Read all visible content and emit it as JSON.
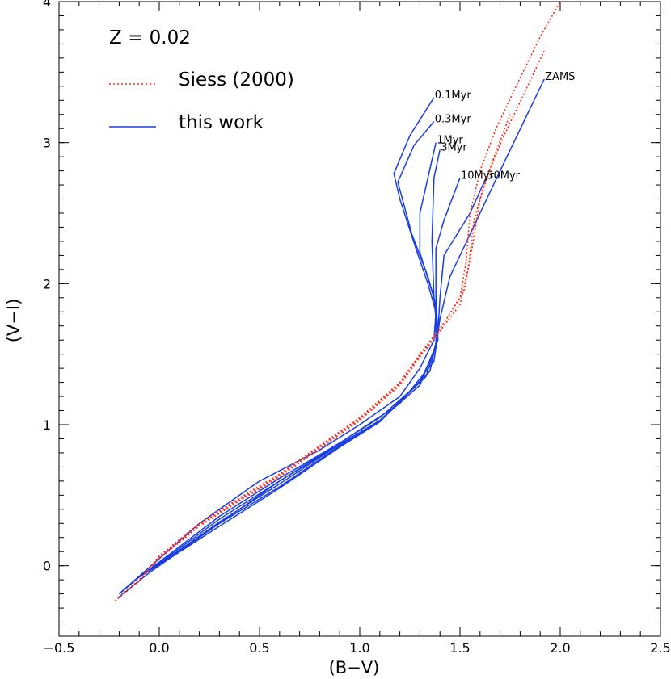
{
  "chart_data": {
    "type": "line",
    "title": "",
    "xlabel": "(B−V)",
    "ylabel": "(V−I)",
    "xlim": [
      -0.5,
      2.5
    ],
    "ylim": [
      -0.5,
      4.0
    ],
    "x_ticks": [
      -0.5,
      0.0,
      0.5,
      1.0,
      1.5,
      2.0,
      2.5
    ],
    "x_tick_labels": [
      "−0.5",
      "0.0",
      "0.5",
      "1.0",
      "1.5",
      "2.0",
      "2.5"
    ],
    "y_ticks": [
      0,
      1,
      2,
      3,
      4
    ],
    "y_tick_labels": [
      "0",
      "1",
      "2",
      "3",
      "4"
    ],
    "grid": false,
    "legend_placement": "top-left",
    "annotation": "Z = 0.02",
    "colors": {
      "siess": "#ff2a1a",
      "this_work": "#1a3ee0",
      "axes": "#000000"
    },
    "legend": [
      {
        "label": "Siess (2000)",
        "style": "dotted",
        "color": "#ff2a1a"
      },
      {
        "label": "this work",
        "style": "solid",
        "color": "#1a3ee0"
      }
    ],
    "series": [
      {
        "name": "0.1Myr",
        "group": "this work",
        "style": "solid",
        "x": [
          -0.2,
          -0.12,
          0.0,
          0.2,
          0.5,
          0.8,
          1.0,
          1.2,
          1.3,
          1.37,
          1.38,
          1.34,
          1.28,
          1.2,
          1.17,
          1.25,
          1.37
        ],
        "y": [
          -0.2,
          -0.1,
          0.05,
          0.3,
          0.6,
          0.82,
          1.0,
          1.2,
          1.4,
          1.6,
          1.8,
          2.0,
          2.25,
          2.6,
          2.78,
          3.05,
          3.32
        ]
      },
      {
        "name": "0.3Myr",
        "group": "this work",
        "style": "solid",
        "x": [
          -0.2,
          -0.1,
          0.05,
          0.3,
          0.6,
          0.9,
          1.1,
          1.3,
          1.38,
          1.38,
          1.34,
          1.26,
          1.19,
          1.27,
          1.37
        ],
        "y": [
          -0.2,
          -0.08,
          0.08,
          0.35,
          0.62,
          0.87,
          1.05,
          1.3,
          1.55,
          1.85,
          2.05,
          2.35,
          2.72,
          2.98,
          3.15
        ]
      },
      {
        "name": "1Myr",
        "group": "this work",
        "style": "solid",
        "x": [
          -0.2,
          -0.1,
          0.05,
          0.3,
          0.6,
          0.9,
          1.1,
          1.3,
          1.39,
          1.37,
          1.3,
          1.3,
          1.38
        ],
        "y": [
          -0.2,
          -0.08,
          0.07,
          0.33,
          0.6,
          0.86,
          1.03,
          1.28,
          1.6,
          1.9,
          2.22,
          2.5,
          3.0
        ]
      },
      {
        "name": "3Myr",
        "group": "this work",
        "style": "solid",
        "x": [
          -0.2,
          -0.1,
          0.05,
          0.3,
          0.6,
          0.9,
          1.1,
          1.33,
          1.39,
          1.37,
          1.36,
          1.37,
          1.4
        ],
        "y": [
          -0.2,
          -0.08,
          0.06,
          0.31,
          0.58,
          0.86,
          1.03,
          1.34,
          1.62,
          1.9,
          2.3,
          2.75,
          2.95
        ]
      },
      {
        "name": "10Myr",
        "group": "this work",
        "style": "solid",
        "x": [
          -0.2,
          -0.1,
          0.05,
          0.3,
          0.6,
          0.9,
          1.1,
          1.35,
          1.39,
          1.38,
          1.38,
          1.42,
          1.5
        ],
        "y": [
          -0.2,
          -0.08,
          0.06,
          0.3,
          0.56,
          0.85,
          1.02,
          1.38,
          1.65,
          1.9,
          2.25,
          2.45,
          2.75
        ]
      },
      {
        "name": "30Myr",
        "group": "this work",
        "style": "solid",
        "x": [
          -0.2,
          -0.1,
          0.05,
          0.3,
          0.6,
          0.9,
          1.1,
          1.35,
          1.39,
          1.4,
          1.42,
          1.55,
          1.63
        ],
        "y": [
          -0.2,
          -0.08,
          0.05,
          0.28,
          0.55,
          0.84,
          1.02,
          1.38,
          1.65,
          1.9,
          2.2,
          2.5,
          2.75
        ]
      },
      {
        "name": "ZAMS",
        "group": "this work",
        "style": "solid",
        "x": [
          -0.2,
          -0.05,
          0.25,
          0.6,
          0.9,
          1.2,
          1.37,
          1.4,
          1.45,
          1.55,
          1.7,
          1.92
        ],
        "y": [
          -0.22,
          -0.05,
          0.25,
          0.6,
          0.87,
          1.15,
          1.45,
          1.75,
          2.05,
          2.35,
          2.8,
          3.45
        ]
      },
      {
        "name": "Siess (2000) a",
        "group": "Siess (2000)",
        "style": "dotted",
        "x": [
          -0.22,
          -0.1,
          0.0,
          0.2,
          0.4,
          0.6,
          0.8,
          1.0,
          1.2,
          1.3,
          1.42,
          1.5,
          1.53,
          1.55,
          1.6,
          1.68,
          1.78,
          1.9,
          2.0
        ],
        "y": [
          -0.25,
          -0.1,
          0.07,
          0.3,
          0.48,
          0.65,
          0.85,
          1.05,
          1.3,
          1.5,
          1.72,
          1.9,
          2.15,
          2.5,
          2.8,
          3.1,
          3.4,
          3.75,
          4.0
        ]
      },
      {
        "name": "Siess (2000) b",
        "group": "Siess (2000)",
        "style": "dotted",
        "x": [
          -0.22,
          -0.1,
          0.0,
          0.2,
          0.4,
          0.6,
          0.8,
          1.0,
          1.2,
          1.3,
          1.42,
          1.5,
          1.54,
          1.57,
          1.63,
          1.72,
          1.82,
          1.92
        ],
        "y": [
          -0.25,
          -0.1,
          0.05,
          0.28,
          0.46,
          0.63,
          0.83,
          1.03,
          1.28,
          1.48,
          1.7,
          1.85,
          2.1,
          2.45,
          2.75,
          3.05,
          3.35,
          3.65
        ]
      },
      {
        "name": "Siess (2000) c",
        "group": "Siess (2000)",
        "style": "dotted",
        "x": [
          -0.22,
          -0.1,
          0.0,
          0.2,
          0.4,
          0.6,
          0.8,
          1.0,
          1.2,
          1.3,
          1.42,
          1.52,
          1.56,
          1.6,
          1.67,
          1.75
        ],
        "y": [
          -0.25,
          -0.11,
          0.06,
          0.29,
          0.47,
          0.64,
          0.84,
          1.04,
          1.29,
          1.49,
          1.72,
          1.95,
          2.25,
          2.6,
          2.9,
          3.2
        ]
      }
    ],
    "series_labels": [
      {
        "text": "0.1Myr",
        "series": "0.1Myr"
      },
      {
        "text": "0.3Myr",
        "series": "0.3Myr"
      },
      {
        "text": "1Myr",
        "series": "1Myr"
      },
      {
        "text": "3Myr",
        "series": "3Myr"
      },
      {
        "text": "10Myr",
        "series": "10Myr"
      },
      {
        "text": "30Myr",
        "series": "30Myr"
      },
      {
        "text": "ZAMS",
        "series": "ZAMS"
      }
    ]
  }
}
